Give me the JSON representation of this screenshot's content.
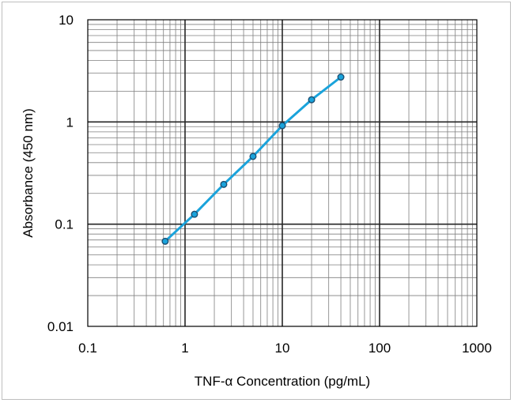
{
  "chart_data": {
    "type": "line",
    "xscale": "log",
    "yscale": "log",
    "xlim": [
      0.1,
      1000
    ],
    "ylim": [
      0.01,
      10
    ],
    "xlabel": "TNF-α Concentration (pg/mL)",
    "ylabel": "Absorbance (450 nm)",
    "x_ticks": [
      "0.1",
      "1",
      "10",
      "100",
      "1000"
    ],
    "y_ticks": [
      "0.01",
      "0.1",
      "1",
      "10"
    ],
    "grid": true,
    "minor_grid": true,
    "legend": "none",
    "series": [
      {
        "color": "#1aa3db",
        "marker": "circle",
        "x": [
          0.625,
          1.25,
          2.5,
          5,
          10,
          20,
          40
        ],
        "y": [
          0.068,
          0.125,
          0.245,
          0.46,
          0.92,
          1.65,
          2.75
        ]
      }
    ]
  }
}
